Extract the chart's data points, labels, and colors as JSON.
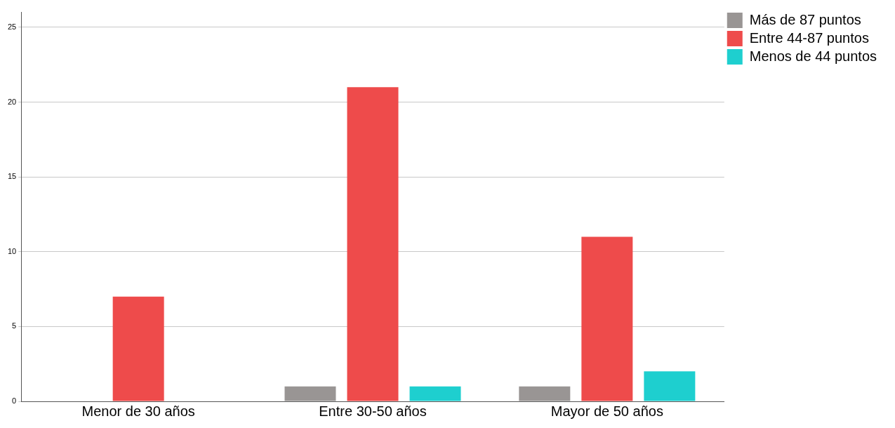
{
  "chart_data": {
    "type": "bar",
    "categories": [
      "Menor de 30 años",
      "Entre 30-50 años",
      "Mayor de 50 años"
    ],
    "series": [
      {
        "name": "Más de 87 puntos",
        "color": "#999594",
        "values": [
          0,
          1,
          1
        ]
      },
      {
        "name": "Entre 44-87 puntos",
        "color": "#ee4b4b",
        "values": [
          7,
          21,
          11
        ]
      },
      {
        "name": "Menos de 44 puntos",
        "color": "#1ecfcf",
        "values": [
          0,
          1,
          2
        ]
      }
    ],
    "ylim": [
      0,
      26
    ],
    "yticks": [
      0,
      5,
      10,
      15,
      20,
      25
    ],
    "grid": "y",
    "legend": "top right"
  }
}
